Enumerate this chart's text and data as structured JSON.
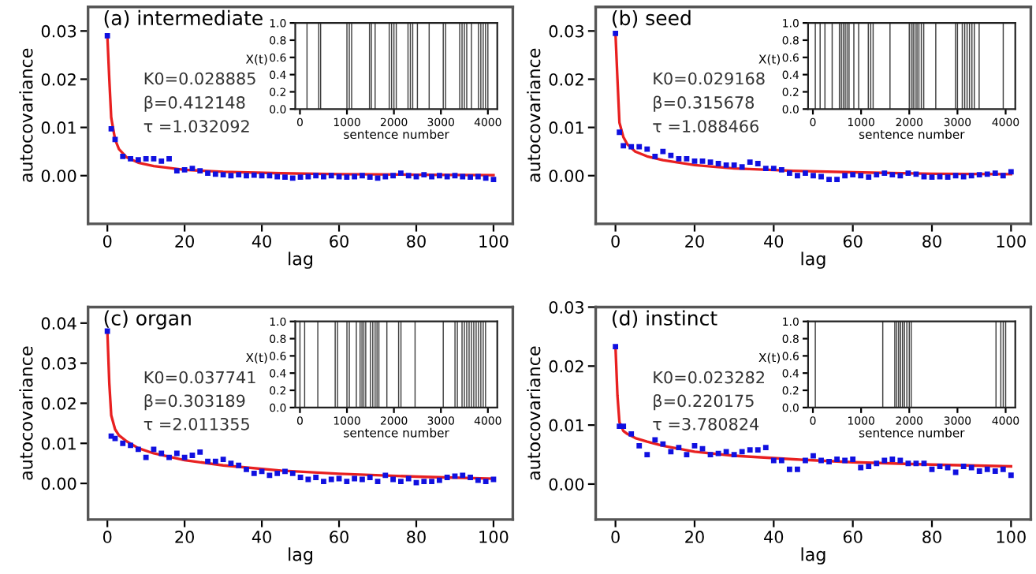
{
  "chart_data": [
    {
      "type": "scatter",
      "title": "(a) intermediate",
      "xlabel": "lag",
      "ylabel": "autocovariance",
      "xlim": [
        -5,
        105
      ],
      "xticks": [
        0,
        20,
        40,
        60,
        80,
        100
      ],
      "ylim": [
        -0.01,
        0.035
      ],
      "yticks": [
        {
          "value": 0,
          "label": "0.00"
        },
        {
          "value": 0.01,
          "label": "0.01"
        },
        {
          "value": 0.02,
          "label": "0.02"
        },
        {
          "value": 0.03,
          "label": "0.03"
        }
      ],
      "marker": "square",
      "annotations": [
        "K0=0.028885",
        "β=0.412148",
        "τ =1.032092"
      ],
      "series": [
        {
          "color": "#1010e0",
          "x": [
            0,
            1,
            2,
            4,
            6,
            8,
            10,
            12,
            14,
            16,
            18,
            20,
            22,
            24,
            26,
            28,
            30,
            32,
            34,
            36,
            38,
            40,
            42,
            44,
            46,
            48,
            50,
            52,
            54,
            56,
            58,
            60,
            62,
            64,
            66,
            68,
            70,
            72,
            74,
            76,
            78,
            80,
            82,
            84,
            86,
            88,
            90,
            92,
            94,
            96,
            98,
            100
          ],
          "values": [
            0.029,
            0.0097,
            0.0075,
            0.004,
            0.0035,
            0.0033,
            0.0035,
            0.0035,
            0.003,
            0.0035,
            0.001,
            0.0012,
            0.0015,
            0.001,
            0.0005,
            0.0003,
            0.0002,
            0.0,
            0.0002,
            0.0,
            0.0001,
            0.0,
            0.0,
            -0.0002,
            -0.0003,
            -0.0005,
            -0.0003,
            -0.0002,
            0.0,
            -0.0002,
            0.0,
            -0.0002,
            -0.0003,
            -0.0002,
            0.0,
            -0.0003,
            -0.0005,
            -0.0002,
            0.0,
            0.0005,
            0.0,
            -0.0002,
            0.0002,
            -0.0002,
            0.0,
            -0.0002,
            0.0,
            -0.0002,
            -0.0003,
            -0.0002,
            -0.0005,
            -0.0008
          ]
        },
        {
          "type": "line",
          "marker": "none",
          "color": "#e82020",
          "x": [
            0,
            0.5,
            1,
            2,
            3,
            5,
            8,
            12,
            20,
            30,
            45,
            60,
            80,
            100
          ],
          "values": [
            0.029,
            0.02,
            0.012,
            0.0075,
            0.0055,
            0.0038,
            0.0027,
            0.002,
            0.0012,
            0.0008,
            0.0005,
            0.0003,
            0.0002,
            0.0001
          ]
        }
      ]
    },
    {
      "type": "bar",
      "xlabel": "sentence number",
      "ylabel": "X(t)",
      "xlim": [
        -100,
        4200
      ],
      "xticks": [
        0,
        1000,
        2000,
        3000,
        4000
      ],
      "ylim": [
        0,
        1
      ],
      "yticks": [
        {
          "value": 0,
          "label": "0.0"
        },
        {
          "value": 0.2,
          "label": "0.2"
        },
        {
          "value": 0.4,
          "label": "0.4"
        },
        {
          "value": 0.6,
          "label": "0.6"
        },
        {
          "value": 0.8,
          "label": "0.8"
        },
        {
          "value": 1,
          "label": "1.0"
        }
      ],
      "series": [
        {
          "color": "#404040",
          "x": [
            150,
            400,
            440,
            1000,
            1050,
            1100,
            1480,
            1520,
            1600,
            1900,
            1950,
            2000,
            2050,
            2300,
            2350,
            2400,
            2500,
            2750,
            3050,
            3100,
            3400,
            3450,
            3500,
            3550,
            3650,
            3800,
            3850,
            3900,
            3950,
            4000
          ],
          "values": [
            1,
            1,
            1,
            1,
            1,
            1,
            1,
            1,
            1,
            1,
            1,
            1,
            1,
            1,
            1,
            1,
            1,
            1,
            1,
            1,
            1,
            1,
            1,
            1,
            1,
            1,
            1,
            1,
            1,
            1
          ]
        }
      ]
    },
    {
      "type": "scatter",
      "title": "(b) seed",
      "xlabel": "lag",
      "ylabel": "autocovariance",
      "xlim": [
        -5,
        105
      ],
      "xticks": [
        0,
        20,
        40,
        60,
        80,
        100
      ],
      "ylim": [
        -0.01,
        0.035
      ],
      "yticks": [
        {
          "value": 0,
          "label": "0.00"
        },
        {
          "value": 0.01,
          "label": "0.01"
        },
        {
          "value": 0.02,
          "label": "0.02"
        },
        {
          "value": 0.03,
          "label": "0.03"
        }
      ],
      "marker": "square",
      "annotations": [
        "K0=0.029168",
        "β=0.315678",
        "τ =1.088466"
      ],
      "series": [
        {
          "color": "#1010e0",
          "x": [
            0,
            1,
            2,
            4,
            6,
            8,
            10,
            12,
            14,
            16,
            18,
            20,
            22,
            24,
            26,
            28,
            30,
            32,
            34,
            36,
            38,
            40,
            42,
            44,
            46,
            48,
            50,
            52,
            54,
            56,
            58,
            60,
            62,
            64,
            66,
            68,
            70,
            72,
            74,
            76,
            78,
            80,
            82,
            84,
            86,
            88,
            90,
            92,
            94,
            96,
            98,
            100
          ],
          "values": [
            0.0295,
            0.009,
            0.0062,
            0.006,
            0.006,
            0.0055,
            0.004,
            0.005,
            0.0042,
            0.0035,
            0.0035,
            0.003,
            0.003,
            0.0028,
            0.0025,
            0.0022,
            0.0022,
            0.0018,
            0.0028,
            0.0025,
            0.0015,
            0.0015,
            0.0012,
            0.0005,
            0.0,
            0.0005,
            0.0,
            -0.0002,
            -0.0008,
            -0.0008,
            0.0,
            0.0002,
            0.0,
            -0.0003,
            0.0002,
            0.0005,
            0.0002,
            0.0,
            0.0005,
            0.0003,
            -0.0002,
            -0.0003,
            -0.0002,
            -0.0003,
            0.0,
            -0.0002,
            0.0,
            0.0002,
            0.0003,
            0.0005,
            0.0,
            0.0008
          ]
        },
        {
          "type": "line",
          "marker": "none",
          "color": "#e82020",
          "x": [
            0,
            0.5,
            1,
            2,
            3,
            5,
            8,
            12,
            20,
            30,
            45,
            60,
            80,
            100
          ],
          "values": [
            0.0295,
            0.02,
            0.011,
            0.008,
            0.0065,
            0.005,
            0.004,
            0.0032,
            0.0022,
            0.0015,
            0.001,
            0.0007,
            0.0004,
            0.0003
          ]
        }
      ]
    },
    {
      "type": "bar",
      "xlabel": "sentence number",
      "ylabel": "X(t)",
      "xlim": [
        -100,
        4200
      ],
      "xticks": [
        0,
        1000,
        2000,
        3000,
        4000
      ],
      "ylim": [
        0,
        1
      ],
      "yticks": [
        {
          "value": 0,
          "label": "0.0"
        },
        {
          "value": 0.2,
          "label": "0.2"
        },
        {
          "value": 0.4,
          "label": "0.4"
        },
        {
          "value": 0.6,
          "label": "0.6"
        },
        {
          "value": 0.8,
          "label": "0.8"
        },
        {
          "value": 1,
          "label": "1.0"
        }
      ],
      "series": [
        {
          "color": "#404040",
          "x": [
            50,
            150,
            250,
            400,
            550,
            590,
            630,
            670,
            710,
            750,
            850,
            950,
            1150,
            1200,
            1250,
            1600,
            2000,
            2040,
            2080,
            2120,
            2160,
            2200,
            2250,
            2300,
            2550,
            2960,
            3000,
            3100,
            3150,
            3200,
            3250,
            3300,
            3350,
            3450,
            3950
          ],
          "values": [
            1,
            1,
            1,
            1,
            1,
            1,
            1,
            1,
            1,
            1,
            1,
            1,
            1,
            1,
            1,
            1,
            1,
            1,
            1,
            1,
            1,
            1,
            1,
            1,
            1,
            1,
            1,
            1,
            1,
            1,
            1,
            1,
            1,
            1,
            1
          ]
        }
      ]
    },
    {
      "type": "scatter",
      "title": "(c) organ",
      "xlabel": "lag",
      "ylabel": "autocovariance",
      "xlim": [
        -5,
        105
      ],
      "xticks": [
        0,
        20,
        40,
        60,
        80,
        100
      ],
      "ylim": [
        -0.009,
        0.044
      ],
      "yticks": [
        {
          "value": 0,
          "label": "0.00"
        },
        {
          "value": 0.01,
          "label": "0.01"
        },
        {
          "value": 0.02,
          "label": "0.02"
        },
        {
          "value": 0.03,
          "label": "0.03"
        },
        {
          "value": 0.04,
          "label": "0.04"
        }
      ],
      "marker": "square",
      "annotations": [
        "K0=0.037741",
        "β=0.303189",
        "τ =2.011355"
      ],
      "series": [
        {
          "color": "#1010e0",
          "x": [
            0,
            1,
            2,
            4,
            6,
            8,
            10,
            12,
            14,
            16,
            18,
            20,
            22,
            24,
            26,
            28,
            30,
            32,
            34,
            36,
            38,
            40,
            42,
            44,
            46,
            48,
            50,
            52,
            54,
            56,
            58,
            60,
            62,
            64,
            66,
            68,
            70,
            72,
            74,
            76,
            78,
            80,
            82,
            84,
            86,
            88,
            90,
            92,
            94,
            96,
            98,
            100
          ],
          "values": [
            0.038,
            0.0118,
            0.0112,
            0.01,
            0.0095,
            0.0085,
            0.0065,
            0.0085,
            0.0075,
            0.0065,
            0.0075,
            0.0065,
            0.007,
            0.0078,
            0.0055,
            0.0055,
            0.006,
            0.005,
            0.0045,
            0.0035,
            0.0025,
            0.003,
            0.002,
            0.0025,
            0.003,
            0.0025,
            0.0015,
            0.001,
            0.0015,
            0.0005,
            0.001,
            0.0012,
            0.0005,
            0.0012,
            0.001,
            0.0015,
            0.0005,
            0.002,
            0.001,
            0.0005,
            0.0012,
            0.0002,
            0.0005,
            0.0005,
            0.0008,
            0.0015,
            0.0018,
            0.002,
            0.0015,
            0.0008,
            0.0005,
            0.001
          ]
        },
        {
          "type": "line",
          "marker": "none",
          "color": "#e82020",
          "x": [
            0,
            0.5,
            1,
            2,
            3,
            5,
            8,
            12,
            20,
            30,
            45,
            60,
            80,
            100
          ],
          "values": [
            0.038,
            0.025,
            0.017,
            0.0135,
            0.012,
            0.0105,
            0.0088,
            0.0075,
            0.0058,
            0.0045,
            0.0032,
            0.0024,
            0.0017,
            0.0012
          ]
        }
      ]
    },
    {
      "type": "bar",
      "xlabel": "sentence number",
      "ylabel": "X(t)",
      "xlim": [
        -100,
        4200
      ],
      "xticks": [
        0,
        1000,
        2000,
        3000,
        4000
      ],
      "ylim": [
        0,
        1
      ],
      "yticks": [
        {
          "value": 0,
          "label": "0.0"
        },
        {
          "value": 0.2,
          "label": "0.2"
        },
        {
          "value": 0.4,
          "label": "0.4"
        },
        {
          "value": 0.6,
          "label": "0.6"
        },
        {
          "value": 0.8,
          "label": "0.8"
        },
        {
          "value": 1,
          "label": "1.0"
        }
      ],
      "series": [
        {
          "color": "#404040",
          "x": [
            0,
            100,
            380,
            750,
            800,
            1000,
            1050,
            1200,
            1280,
            1320,
            1360,
            1400,
            1500,
            1550,
            1600,
            1640,
            1680,
            1850,
            2100,
            2150,
            2450,
            3050,
            3300,
            3350,
            3450,
            3500,
            3550,
            3600,
            3650,
            3700,
            3750,
            3800,
            3850,
            3900,
            3950
          ],
          "values": [
            1,
            1,
            1,
            1,
            1,
            1,
            1,
            1,
            1,
            1,
            1,
            1,
            1,
            1,
            1,
            1,
            1,
            1,
            1,
            1,
            1,
            1,
            1,
            1,
            1,
            1,
            1,
            1,
            1,
            1,
            1,
            1,
            1,
            1,
            1
          ]
        }
      ]
    },
    {
      "type": "scatter",
      "title": "(d) instinct",
      "xlabel": "lag",
      "ylabel": "autocovariance",
      "xlim": [
        -5,
        105
      ],
      "xticks": [
        0,
        20,
        40,
        60,
        80,
        100
      ],
      "ylim": [
        -0.006,
        0.03
      ],
      "yticks": [
        {
          "value": 0,
          "label": "0.00"
        },
        {
          "value": 0.01,
          "label": "0.01"
        },
        {
          "value": 0.02,
          "label": "0.02"
        },
        {
          "value": 0.03,
          "label": "0.03"
        }
      ],
      "marker": "square",
      "annotations": [
        "K0=0.023282",
        "β=0.220175",
        "τ =3.780824"
      ],
      "series": [
        {
          "color": "#1010e0",
          "x": [
            0,
            1,
            2,
            4,
            6,
            8,
            10,
            12,
            14,
            16,
            18,
            20,
            22,
            24,
            26,
            28,
            30,
            32,
            34,
            36,
            38,
            40,
            42,
            44,
            46,
            48,
            50,
            52,
            54,
            56,
            58,
            60,
            62,
            64,
            66,
            68,
            70,
            72,
            74,
            76,
            78,
            80,
            82,
            84,
            86,
            88,
            90,
            92,
            94,
            96,
            98,
            100
          ],
          "values": [
            0.0233,
            0.0098,
            0.0098,
            0.0085,
            0.0065,
            0.005,
            0.0075,
            0.0068,
            0.0055,
            0.0062,
            0.005,
            0.0065,
            0.006,
            0.005,
            0.0052,
            0.0055,
            0.005,
            0.0055,
            0.0058,
            0.0058,
            0.0062,
            0.004,
            0.004,
            0.0025,
            0.0025,
            0.004,
            0.0048,
            0.004,
            0.0038,
            0.0042,
            0.004,
            0.0042,
            0.0028,
            0.003,
            0.0035,
            0.004,
            0.0042,
            0.004,
            0.0035,
            0.0035,
            0.0035,
            0.0025,
            0.003,
            0.0028,
            0.002,
            0.003,
            0.0028,
            0.0022,
            0.0025,
            0.0022,
            0.0025,
            0.0015
          ]
        },
        {
          "type": "line",
          "marker": "none",
          "color": "#e82020",
          "x": [
            0,
            0.5,
            1,
            2,
            3,
            5,
            8,
            12,
            20,
            30,
            45,
            60,
            80,
            100
          ],
          "values": [
            0.0233,
            0.015,
            0.0105,
            0.009,
            0.0085,
            0.0078,
            0.0072,
            0.0065,
            0.0055,
            0.0048,
            0.0042,
            0.0037,
            0.0033,
            0.003
          ]
        }
      ]
    },
    {
      "type": "bar",
      "xlabel": "sentence number",
      "ylabel": "X(t)",
      "xlim": [
        -100,
        4200
      ],
      "xticks": [
        0,
        1000,
        2000,
        3000,
        4000
      ],
      "ylim": [
        0,
        1
      ],
      "yticks": [
        {
          "value": 0,
          "label": "0.0"
        },
        {
          "value": 0.2,
          "label": "0.2"
        },
        {
          "value": 0.4,
          "label": "0.4"
        },
        {
          "value": 0.6,
          "label": "0.6"
        },
        {
          "value": 0.8,
          "label": "0.8"
        },
        {
          "value": 1,
          "label": "1.0"
        }
      ],
      "series": [
        {
          "color": "#404040",
          "x": [
            50,
            1450,
            1700,
            1740,
            1780,
            1820,
            1860,
            1900,
            1950,
            2000,
            2040,
            3800,
            3900,
            3950,
            4000
          ],
          "values": [
            1,
            1,
            1,
            1,
            1,
            1,
            1,
            1,
            1,
            1,
            1,
            1,
            1,
            1,
            1
          ]
        }
      ]
    }
  ]
}
